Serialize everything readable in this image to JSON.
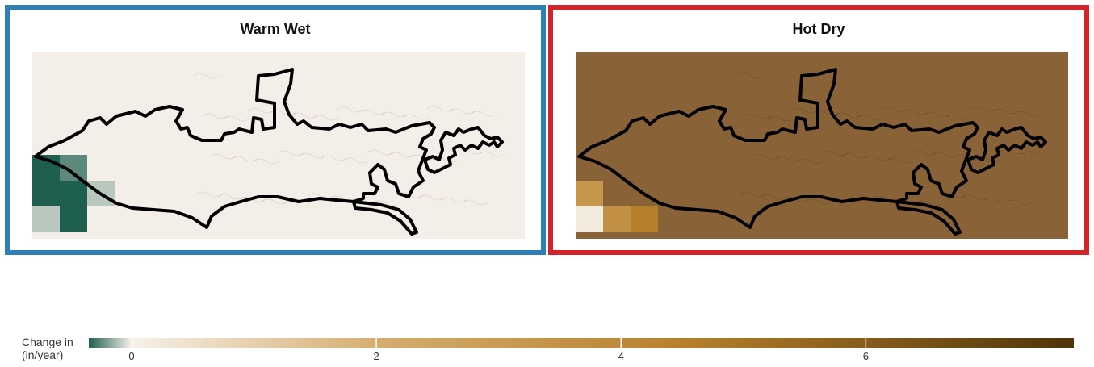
{
  "panels": [
    {
      "title": "Warm Wet",
      "border_color": "#2e7fb6",
      "base_fill": "#f3eee7",
      "cells": [
        {
          "col": 0,
          "row": 4,
          "value": -0.35
        },
        {
          "col": 1,
          "row": 4,
          "value": -0.25
        },
        {
          "col": 0,
          "row": 5,
          "value": -0.55
        },
        {
          "col": 1,
          "row": 5,
          "value": -0.95
        },
        {
          "col": 2,
          "row": 5,
          "value": -0.1
        },
        {
          "col": 0,
          "row": 6,
          "value": -0.1
        },
        {
          "col": 1,
          "row": 6,
          "value": -0.95
        }
      ]
    },
    {
      "title": "Hot Dry",
      "border_color": "#d5232a",
      "base_fill": "#8a6238",
      "cells": [
        {
          "col": 0,
          "row": 5,
          "value": 3.3
        },
        {
          "col": 0,
          "row": 6,
          "value": 0.2
        },
        {
          "col": 1,
          "row": 6,
          "value": 3.6
        },
        {
          "col": 2,
          "row": 6,
          "value": 4.6
        }
      ]
    }
  ],
  "legend": {
    "title": "Change in\n(in/year)",
    "min": -0.35,
    "max": 7.7,
    "ticks": [
      "0",
      "2",
      "4",
      "6"
    ],
    "tick_values": [
      0,
      2,
      4,
      6
    ],
    "colors": [
      "#1f5f50",
      "#f6f1ea",
      "#d6ad70",
      "#b7802c",
      "#4f3409"
    ]
  }
}
